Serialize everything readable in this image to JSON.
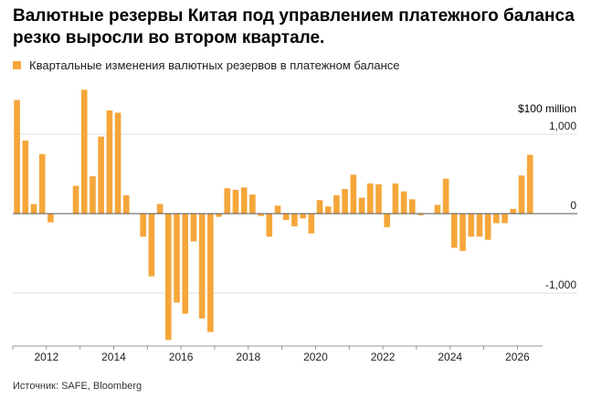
{
  "title": "Валютные резервы Китая под управлением платежного баланса резко выросли во втором квартале.",
  "source": "Источник: SAFE, Bloomberg",
  "colors": {
    "bar": "#f6a63a",
    "axis": "#555555",
    "grid": "#dddddd"
  },
  "chart_data": {
    "type": "bar",
    "legend": "Квартальные изменения валютных резервов в платежном балансе",
    "unit_label": "$100 million",
    "y_tick_labels": [
      "1,000",
      "0",
      "-1,000"
    ],
    "y_ticks": [
      1000,
      0,
      -1000
    ],
    "ylim": [
      -1600,
      1600
    ],
    "x_tick_labels": [
      "2012",
      "2014",
      "2016",
      "2018",
      "2020",
      "2022",
      "2024",
      "2026"
    ],
    "x_ticks": [
      2012,
      2014,
      2016,
      2018,
      2020,
      2022,
      2024,
      2026
    ],
    "xlim": [
      2011.0,
      2026.75
    ],
    "grid": "horizontal",
    "x": [
      "2011 Q1",
      "2011 Q2",
      "2011 Q3",
      "2011 Q4",
      "2012 Q1",
      "2012 Q2",
      "2012 Q3",
      "2012 Q4",
      "2013 Q1",
      "2013 Q2",
      "2013 Q3",
      "2013 Q4",
      "2014 Q1",
      "2014 Q2",
      "2014 Q3",
      "2014 Q4",
      "2015 Q1",
      "2015 Q2",
      "2015 Q3",
      "2015 Q4",
      "2016 Q1",
      "2016 Q2",
      "2016 Q3",
      "2016 Q4",
      "2017 Q1",
      "2017 Q2",
      "2017 Q3",
      "2017 Q4",
      "2018 Q1",
      "2018 Q2",
      "2018 Q3",
      "2018 Q4",
      "2019 Q1",
      "2019 Q2",
      "2019 Q3",
      "2019 Q4",
      "2020 Q1",
      "2020 Q2",
      "2020 Q3",
      "2020 Q4",
      "2021 Q1",
      "2021 Q2",
      "2021 Q3",
      "2021 Q4",
      "2022 Q1",
      "2022 Q2",
      "2022 Q3",
      "2022 Q4",
      "2023 Q1",
      "2023 Q2",
      "2023 Q3",
      "2023 Q4",
      "2024 Q1",
      "2024 Q2",
      "2024 Q3",
      "2024 Q4",
      "2025 Q1",
      "2025 Q2",
      "2025 Q3",
      "2025 Q4",
      "2026 Q1",
      "2026 Q2"
    ],
    "values": [
      1430,
      920,
      120,
      750,
      -110,
      0,
      0,
      350,
      1560,
      470,
      970,
      1300,
      1270,
      230,
      0,
      -290,
      -790,
      120,
      -1590,
      -1120,
      -1260,
      -350,
      -1320,
      -1490,
      -40,
      320,
      300,
      330,
      240,
      -30,
      -290,
      100,
      -80,
      -160,
      -60,
      -250,
      170,
      90,
      230,
      310,
      490,
      200,
      380,
      370,
      -170,
      380,
      280,
      180,
      -20,
      0,
      110,
      440,
      -430,
      -470,
      -290,
      -290,
      -330,
      -120,
      -120,
      60,
      480,
      740
    ]
  }
}
